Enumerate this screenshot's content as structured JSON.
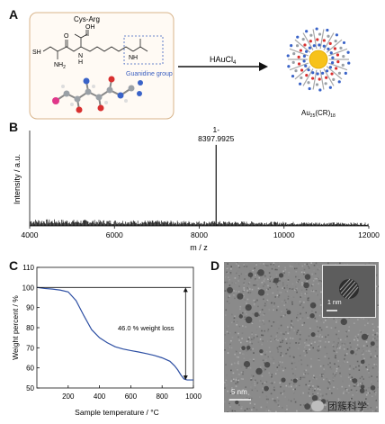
{
  "panel_labels": {
    "a": "A",
    "b": "B",
    "c": "C",
    "d": "D"
  },
  "panel_a": {
    "molecule_name": "Cys-Arg",
    "oh_label": "OH",
    "sh_label": "SH",
    "nh2_label": "NH",
    "nh2_sub": "2",
    "o_label": "O",
    "h_label": "H",
    "n_label": "N",
    "nh_label": "NH",
    "group_label": "Guanidine group",
    "reagent_main": "HAuCl",
    "reagent_sub": "4",
    "product_main": "Au",
    "product_sub1": "25",
    "product_mid": "(CR)",
    "product_sub2": "18",
    "colors": {
      "box_border": "#d8b48a",
      "box_fill": "#fffaf4",
      "group_text": "#3b5fc0",
      "gold": "#f7c21a"
    }
  },
  "chart_data": [
    {
      "type": "line",
      "panel": "B",
      "title": "",
      "xlabel": "m / z",
      "ylabel": "Intensity / a.u.",
      "xlim": [
        4000,
        12000
      ],
      "xticks": [
        4000,
        6000,
        8000,
        10000,
        12000
      ],
      "peak": {
        "x": 8397.9925,
        "charge_label": "1-",
        "mass_label": "8397.9925",
        "relative_height": 0.85
      },
      "noise_level": 0.05
    },
    {
      "type": "line",
      "panel": "C",
      "title": "",
      "xlabel": "Sample temperature / °C",
      "ylabel": "Weight percent / %",
      "xlim": [
        0,
        1000
      ],
      "ylim": [
        50,
        110
      ],
      "xticks": [
        200,
        400,
        600,
        800,
        1000
      ],
      "yticks": [
        50,
        60,
        70,
        80,
        90,
        100,
        110
      ],
      "annotation": "46.0 % weight loss",
      "series": [
        {
          "color": "#2d4fa3",
          "x": [
            0,
            50,
            100,
            150,
            200,
            250,
            300,
            350,
            400,
            450,
            500,
            550,
            600,
            650,
            700,
            750,
            800,
            850,
            880,
            900,
            920,
            940,
            960,
            980,
            1000
          ],
          "y": [
            100,
            99.5,
            99.2,
            98.7,
            97.8,
            93.5,
            86.0,
            79.0,
            75.0,
            72.5,
            70.5,
            69.4,
            68.6,
            67.9,
            67.1,
            66.2,
            65.0,
            63.3,
            61.0,
            59.0,
            56.5,
            54.5,
            54.0,
            54.0,
            54.0
          ]
        }
      ]
    }
  ],
  "panel_d": {
    "main_scale": "5 nm",
    "inset_scale": "1 nm"
  },
  "watermark": "团簇科学"
}
